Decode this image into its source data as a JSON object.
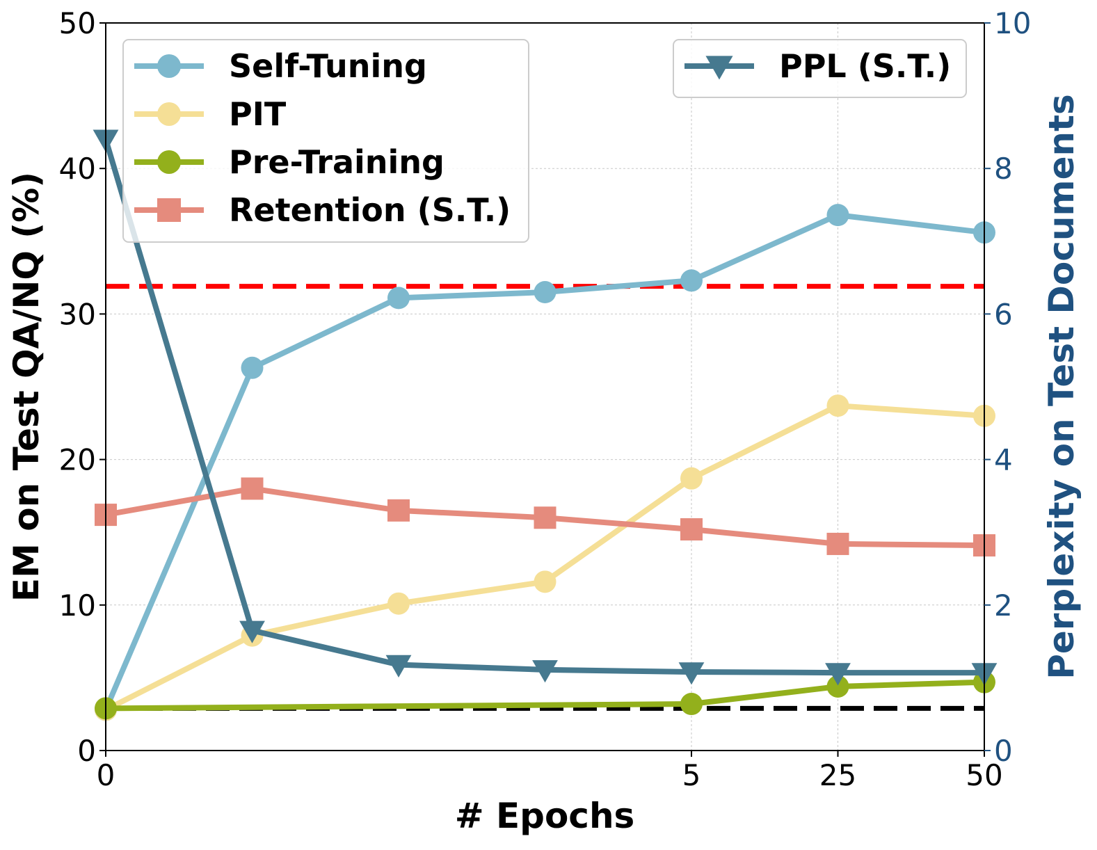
{
  "chart_data": {
    "type": "line",
    "xlabel": "# Epochs",
    "ylabel_left": "EM on Test QA/NQ (%)",
    "ylabel_right": "Perplexity on Test Documents",
    "x_positions": [
      0,
      1,
      2,
      3,
      5,
      25,
      50
    ],
    "x_tick_labels": [
      {
        "label": "0",
        "at": 0
      },
      {
        "label": "5",
        "at": 5
      },
      {
        "label": "25",
        "at": 25
      },
      {
        "label": "50",
        "at": 50
      }
    ],
    "ylim_left": [
      0,
      50
    ],
    "yticks_left": [
      0,
      10,
      20,
      30,
      40,
      50
    ],
    "ylim_right": [
      0,
      10
    ],
    "yticks_right": [
      0,
      2,
      4,
      6,
      8,
      10
    ],
    "grid": true,
    "series": [
      {
        "name": "Self-Tuning",
        "axis": "left",
        "marker": "circle",
        "color": "#7db8cd",
        "values": [
          2.8,
          26.3,
          31.1,
          31.5,
          32.3,
          36.8,
          35.6
        ]
      },
      {
        "name": "PIT",
        "axis": "left",
        "marker": "circle",
        "color": "#f5df96",
        "values": [
          2.8,
          7.9,
          10.1,
          11.6,
          18.7,
          23.7,
          23.0
        ]
      },
      {
        "name": "Pre-Training",
        "axis": "left",
        "marker": "circle",
        "color": "#93b01c",
        "values": [
          2.9,
          null,
          null,
          null,
          3.2,
          4.4,
          4.7
        ]
      },
      {
        "name": "Retention (S.T.)",
        "axis": "left",
        "marker": "square",
        "color": "#e58b7d",
        "values": [
          16.2,
          18.0,
          16.5,
          16.0,
          15.2,
          14.2,
          14.1
        ]
      },
      {
        "name": "PPL (S.T.)",
        "axis": "right",
        "marker": "triangle-down",
        "color": "#46798f",
        "values": [
          8.4,
          1.65,
          1.18,
          1.11,
          1.08,
          1.07,
          1.07
        ]
      }
    ],
    "reference_lines": [
      {
        "axis": "left",
        "value": 31.9,
        "color": "#ff0000",
        "style": "dashed"
      },
      {
        "axis": "left",
        "value": 2.9,
        "color": "#000000",
        "style": "dashed"
      }
    ],
    "legends": [
      {
        "placement": "upper-left",
        "entries": [
          "Self-Tuning",
          "PIT",
          "Pre-Training",
          "Retention (S.T.)"
        ]
      },
      {
        "placement": "upper-right",
        "entries": [
          "PPL (S.T.)"
        ]
      }
    ],
    "colors": {
      "right_axis": "#1f5180"
    }
  }
}
